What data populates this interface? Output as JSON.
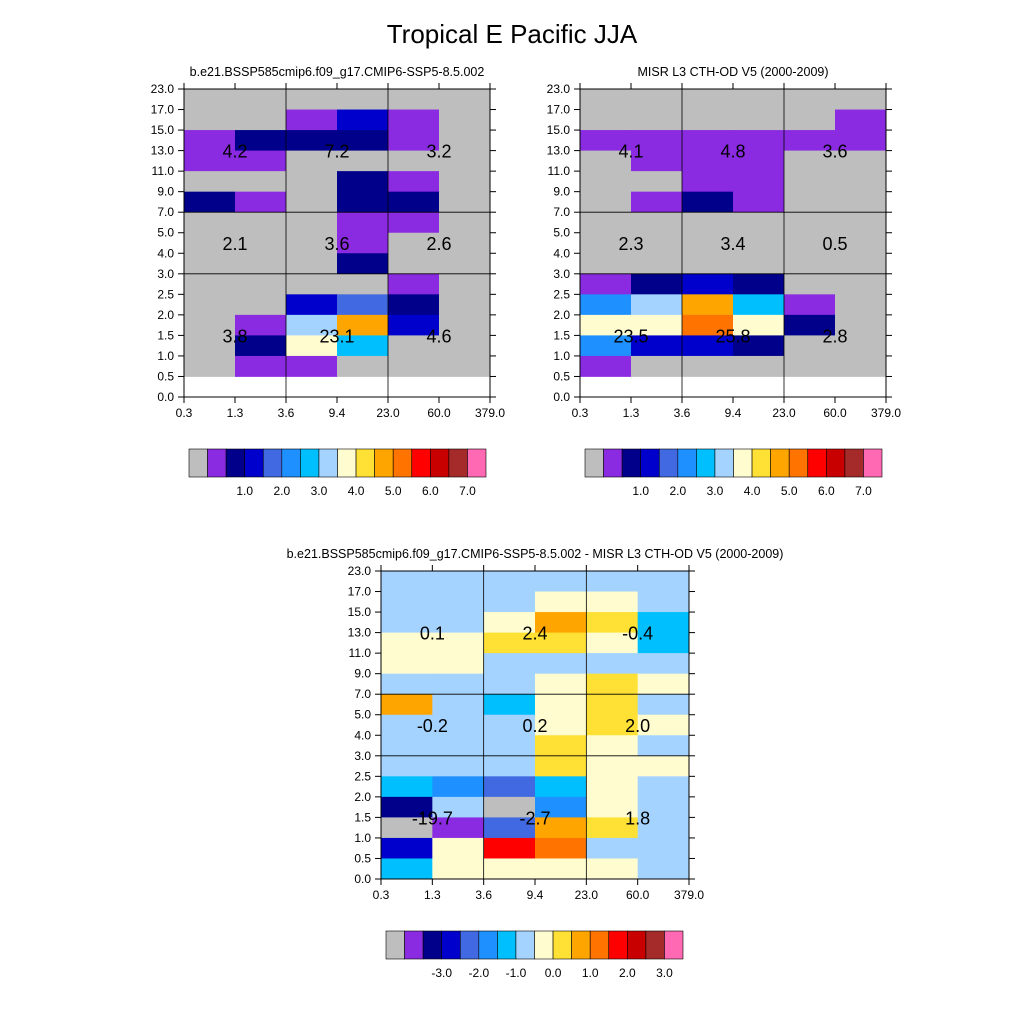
{
  "figure_title": "Tropical E Pacific JJA",
  "palette": [
    "#bebebe",
    "#8a2be2",
    "#00008b",
    "#0000cd",
    "#4169e1",
    "#1e90ff",
    "#00bfff",
    "#a4d3ff",
    "#fffdd0",
    "#ffe135",
    "#ffa500",
    "#ff7300",
    "#ff0000",
    "#c80000",
    "#a52a2a",
    "#ff69b4"
  ],
  "chart_data": [
    {
      "type": "heatmap",
      "title": "b.e21.BSSP585cmip6.f09_g17.CMIP6-SSP5-8.5.002",
      "x_tick_labels": [
        "0.3",
        "1.3",
        "3.6",
        "9.4",
        "23.0",
        "60.0",
        "379.0"
      ],
      "y_tick_labels": [
        "0.0",
        "0.5",
        "1.0",
        "1.5",
        "2.0",
        "2.5",
        "3.0",
        "4.0",
        "5.0",
        "7.0",
        "9.0",
        "11.0",
        "13.0",
        "15.0",
        "17.0",
        "23.0"
      ],
      "cell_color_index_rows_top_to_bottom": [
        [
          0,
          0,
          0,
          0,
          0,
          0
        ],
        [
          0,
          0,
          1,
          3,
          1,
          0
        ],
        [
          1,
          2,
          2,
          2,
          1,
          0
        ],
        [
          1,
          1,
          0,
          0,
          0,
          0
        ],
        [
          0,
          0,
          0,
          2,
          1,
          0
        ],
        [
          2,
          1,
          0,
          2,
          2,
          0
        ],
        [
          0,
          0,
          0,
          1,
          1,
          0
        ],
        [
          0,
          0,
          0,
          1,
          0,
          0
        ],
        [
          0,
          0,
          0,
          2,
          0,
          0
        ],
        [
          0,
          0,
          0,
          0,
          1,
          0
        ],
        [
          0,
          0,
          3,
          4,
          2,
          0
        ],
        [
          0,
          1,
          7,
          10,
          3,
          0
        ],
        [
          0,
          2,
          8,
          6,
          0,
          0
        ],
        [
          0,
          1,
          1,
          0,
          0,
          0
        ]
      ],
      "region_labels": [
        {
          "text": "4.2",
          "col": 0,
          "y": 13.0
        },
        {
          "text": "7.2",
          "col": 1,
          "y": 13.0
        },
        {
          "text": "3.2",
          "col": 2,
          "y": 13.0
        },
        {
          "text": "2.1",
          "col": 0,
          "y": 4.5
        },
        {
          "text": "3.6",
          "col": 1,
          "y": 4.5
        },
        {
          "text": "2.6",
          "col": 2,
          "y": 4.5
        },
        {
          "text": "3.8",
          "col": 0,
          "y": 1.5
        },
        {
          "text": "23.1",
          "col": 1,
          "y": 1.5
        },
        {
          "text": "4.6",
          "col": 2,
          "y": 1.5
        }
      ],
      "colorbar_labels": [
        "1.0",
        "2.0",
        "3.0",
        "4.0",
        "5.0",
        "6.0",
        "7.0"
      ]
    },
    {
      "type": "heatmap",
      "title": "MISR L3 CTH-OD V5 (2000-2009)",
      "x_tick_labels": [
        "0.3",
        "1.3",
        "3.6",
        "9.4",
        "23.0",
        "60.0",
        "379.0"
      ],
      "y_tick_labels": [
        "0.0",
        "0.5",
        "1.0",
        "1.5",
        "2.0",
        "2.5",
        "3.0",
        "4.0",
        "5.0",
        "7.0",
        "9.0",
        "11.0",
        "13.0",
        "15.0",
        "17.0",
        "23.0"
      ],
      "cell_color_index_rows_top_to_bottom": [
        [
          0,
          0,
          0,
          0,
          0,
          0
        ],
        [
          0,
          0,
          0,
          0,
          0,
          1
        ],
        [
          1,
          1,
          1,
          1,
          1,
          1
        ],
        [
          0,
          1,
          1,
          1,
          0,
          0
        ],
        [
          0,
          0,
          1,
          1,
          0,
          0
        ],
        [
          0,
          1,
          2,
          1,
          0,
          0
        ],
        [
          0,
          0,
          0,
          0,
          0,
          0
        ],
        [
          0,
          0,
          0,
          0,
          0,
          0
        ],
        [
          0,
          0,
          0,
          0,
          0,
          0
        ],
        [
          1,
          2,
          3,
          2,
          0,
          0
        ],
        [
          5,
          7,
          10,
          6,
          1,
          0
        ],
        [
          8,
          8,
          11,
          8,
          2,
          0
        ],
        [
          5,
          3,
          3,
          2,
          0,
          0
        ],
        [
          1,
          0,
          0,
          0,
          0,
          0
        ]
      ],
      "region_labels": [
        {
          "text": "4.1",
          "col": 0,
          "y": 13.0
        },
        {
          "text": "4.8",
          "col": 1,
          "y": 13.0
        },
        {
          "text": "3.6",
          "col": 2,
          "y": 13.0
        },
        {
          "text": "2.3",
          "col": 0,
          "y": 4.5
        },
        {
          "text": "3.4",
          "col": 1,
          "y": 4.5
        },
        {
          "text": "0.5",
          "col": 2,
          "y": 4.5
        },
        {
          "text": "23.5",
          "col": 0,
          "y": 1.5
        },
        {
          "text": "25.8",
          "col": 1,
          "y": 1.5
        },
        {
          "text": "2.8",
          "col": 2,
          "y": 1.5
        }
      ],
      "colorbar_labels": [
        "1.0",
        "2.0",
        "3.0",
        "4.0",
        "5.0",
        "6.0",
        "7.0"
      ]
    },
    {
      "type": "heatmap",
      "title": "b.e21.BSSP585cmip6.f09_g17.CMIP6-SSP5-8.5.002 - MISR L3 CTH-OD V5 (2000-2009)",
      "x_tick_labels": [
        "0.3",
        "1.3",
        "3.6",
        "9.4",
        "23.0",
        "60.0",
        "379.0"
      ],
      "y_tick_labels": [
        "0.0",
        "0.5",
        "1.0",
        "1.5",
        "2.0",
        "2.5",
        "3.0",
        "4.0",
        "5.0",
        "7.0",
        "9.0",
        "11.0",
        "13.0",
        "15.0",
        "17.0",
        "23.0"
      ],
      "cell_color_index_rows_top_to_bottom": [
        [
          7,
          7,
          7,
          7,
          7,
          7
        ],
        [
          7,
          7,
          7,
          8,
          8,
          7
        ],
        [
          7,
          7,
          8,
          10,
          9,
          6
        ],
        [
          8,
          8,
          9,
          9,
          8,
          6
        ],
        [
          8,
          8,
          7,
          7,
          7,
          7
        ],
        [
          7,
          7,
          7,
          8,
          9,
          8
        ],
        [
          10,
          7,
          6,
          8,
          9,
          7
        ],
        [
          7,
          7,
          7,
          8,
          9,
          8
        ],
        [
          7,
          7,
          7,
          9,
          8,
          7
        ],
        [
          7,
          7,
          7,
          9,
          8,
          8
        ],
        [
          6,
          5,
          4,
          6,
          8,
          7
        ],
        [
          2,
          7,
          0,
          5,
          8,
          7
        ],
        [
          0,
          1,
          4,
          10,
          9,
          7
        ],
        [
          3,
          8,
          12,
          11,
          7,
          7
        ],
        [
          6,
          8,
          8,
          8,
          8,
          7
        ]
      ],
      "region_labels": [
        {
          "text": "0.1",
          "col": 0,
          "y": 13.0
        },
        {
          "text": "2.4",
          "col": 1,
          "y": 13.0
        },
        {
          "text": "-0.4",
          "col": 2,
          "y": 13.0
        },
        {
          "text": "-0.2",
          "col": 0,
          "y": 4.5
        },
        {
          "text": "0.2",
          "col": 1,
          "y": 4.5
        },
        {
          "text": "2.0",
          "col": 2,
          "y": 4.5
        },
        {
          "text": "-19.7",
          "col": 0,
          "y": 1.5
        },
        {
          "text": "-2.7",
          "col": 1,
          "y": 1.5
        },
        {
          "text": "1.8",
          "col": 2,
          "y": 1.5
        }
      ],
      "colorbar_labels": [
        "-3.0",
        "-2.0",
        "-1.0",
        "0.0",
        "1.0",
        "2.0",
        "3.0"
      ]
    }
  ]
}
